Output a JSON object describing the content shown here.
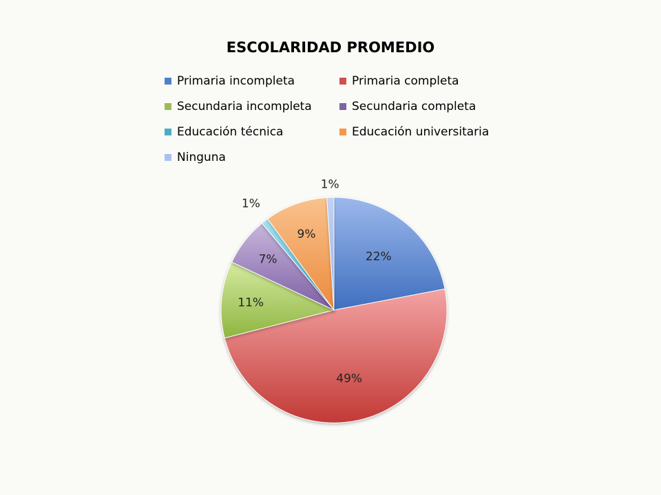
{
  "chart_data": {
    "type": "pie",
    "title": "ESCOLARIDAD PROMEDIO",
    "categories": [
      "Primaria incompleta",
      "Primaria completa",
      "Secundaria incompleta",
      "Secundaria completa",
      "Educación técnica",
      "Educación universitaria",
      "Ninguna"
    ],
    "values": [
      22,
      49,
      11,
      7,
      1,
      9,
      1
    ],
    "value_labels": [
      "22%",
      "49%",
      "11%",
      "7%",
      "1%",
      "9%",
      "1%"
    ],
    "legend": "top",
    "start_angle_deg": 0,
    "direction": "clockwise",
    "colors": [
      {
        "light": "#9cb8ec",
        "dark": "#3f6fbf"
      },
      {
        "light": "#f3a3a3",
        "dark": "#c23a36"
      },
      {
        "light": "#d4eaa0",
        "dark": "#8fb540"
      },
      {
        "light": "#c8b6dc",
        "dark": "#7d5fa4"
      },
      {
        "light": "#a6e2f0",
        "dark": "#3fb3d2"
      },
      {
        "light": "#f9c28e",
        "dark": "#ec8a3b"
      },
      {
        "light": "#c3d2f4",
        "dark": "#98b1e6"
      }
    ]
  }
}
